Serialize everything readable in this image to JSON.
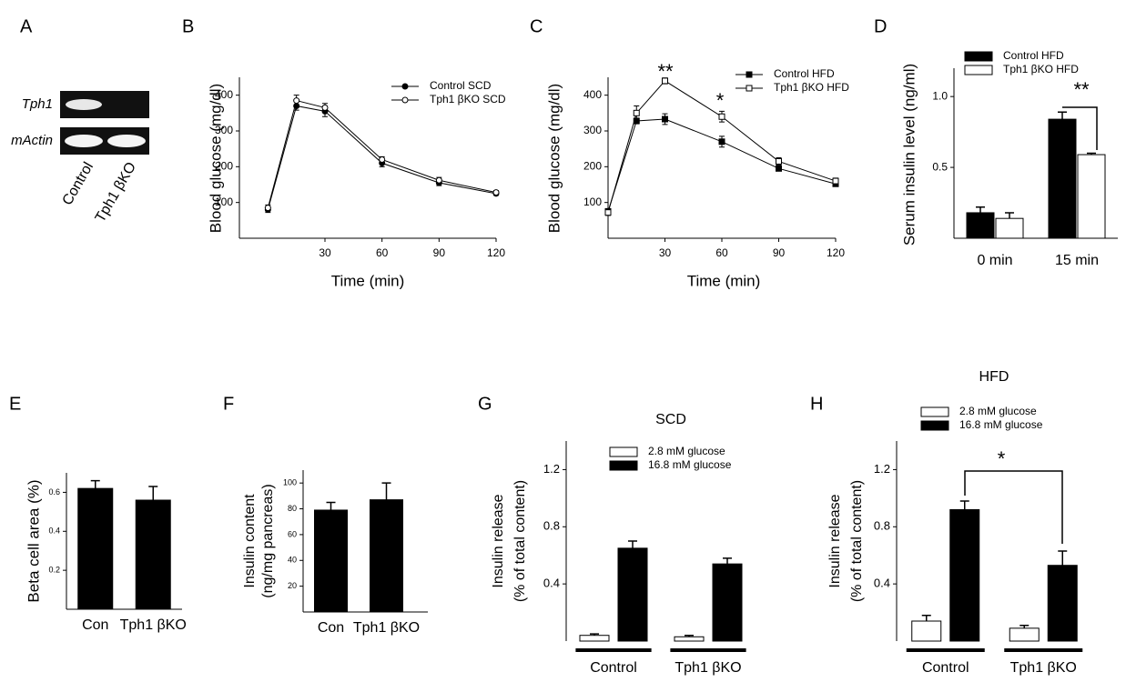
{
  "chart_data": [
    {
      "panel": "A",
      "type": "gel",
      "rows": [
        "Tph1",
        "mActin"
      ],
      "lanes": [
        "Control",
        "Tph1 βKO"
      ]
    },
    {
      "panel": "B",
      "type": "line",
      "xlabel": "Time (min)",
      "ylabel": "Blood glucose (mg/dl)",
      "x": [
        0,
        15,
        30,
        60,
        90,
        120
      ],
      "xlim": [
        -15,
        120
      ],
      "xticks": [
        30,
        60,
        90,
        120
      ],
      "ylim": [
        0,
        450
      ],
      "yticks": [
        100,
        200,
        300,
        400
      ],
      "series": [
        {
          "name": "Control SCD",
          "color": "#000000",
          "fill": "#000000",
          "marker": "circle",
          "values": [
            80,
            370,
            355,
            210,
            155,
            125
          ],
          "errors": [
            8,
            12,
            15,
            10,
            8,
            5
          ]
        },
        {
          "name": "Tph1 βKO SCD",
          "color": "#000000",
          "fill": "#ffffff",
          "marker": "circle",
          "values": [
            85,
            385,
            365,
            220,
            162,
            128
          ],
          "errors": [
            8,
            15,
            12,
            8,
            8,
            5
          ]
        }
      ]
    },
    {
      "panel": "C",
      "type": "line",
      "xlabel": "Time (min)",
      "ylabel": "Blood glucose (mg/dl)",
      "x": [
        0,
        15,
        30,
        60,
        90,
        120
      ],
      "xlim": [
        0,
        120
      ],
      "xticks": [
        30,
        60,
        90,
        120
      ],
      "ylim": [
        0,
        450
      ],
      "yticks": [
        100,
        200,
        300,
        400
      ],
      "annotations": [
        "**",
        "*"
      ],
      "series": [
        {
          "name": "Control HFD",
          "color": "#000000",
          "fill": "#000000",
          "marker": "square",
          "values": [
            75,
            328,
            333,
            270,
            195,
            152
          ],
          "errors": [
            8,
            8,
            15,
            15,
            6,
            6
          ]
        },
        {
          "name": "Tph1 βKO HFD",
          "color": "#000000",
          "fill": "#ffffff",
          "marker": "square",
          "values": [
            72,
            350,
            440,
            340,
            215,
            160
          ],
          "errors": [
            8,
            20,
            8,
            15,
            10,
            8
          ]
        }
      ]
    },
    {
      "panel": "D",
      "type": "bar",
      "ylabel": "Serum insulin level (ng/ml)",
      "categories": [
        "0 min",
        "15 min"
      ],
      "ylim": [
        0,
        1.2
      ],
      "yticks": [
        0.5,
        {
          "value": 1,
          "label": "1.0"
        }
      ],
      "annotations": [
        "**"
      ],
      "series": [
        {
          "name": "Control HFD",
          "color": "#000000",
          "values": [
            0.18,
            0.84
          ],
          "errors": [
            0.04,
            0.05
          ]
        },
        {
          "name": "Tph1 βKO HFD",
          "color": "#ffffff",
          "values": [
            0.14,
            0.59
          ],
          "errors": [
            0.04,
            0.01
          ]
        }
      ]
    },
    {
      "panel": "E",
      "type": "bar",
      "ylabel": "Beta cell area (%)",
      "categories": [
        "Con",
        "Tph1 βKO"
      ],
      "ylim": [
        0,
        0.7
      ],
      "yticks": [
        0.2,
        0.4,
        0.6
      ],
      "series": [
        {
          "color": "#000000",
          "values": [
            0.62,
            0.56
          ],
          "errors": [
            0.04,
            0.07
          ]
        }
      ]
    },
    {
      "panel": "F",
      "type": "bar",
      "ylabel": [
        "Insulin content",
        "(ng/mg pancreas)"
      ],
      "categories": [
        "Con",
        "Tph1 βKO"
      ],
      "ylim": [
        0,
        110
      ],
      "yticks": [
        20,
        40,
        60,
        80,
        100
      ],
      "series": [
        {
          "color": "#000000",
          "values": [
            79,
            87
          ],
          "errors": [
            6,
            13
          ]
        }
      ]
    },
    {
      "panel": "G",
      "type": "bar",
      "title": "SCD",
      "ylabel": [
        "Insulin release",
        "(% of total content)"
      ],
      "categories": [
        "Control",
        "Tph1 βKO"
      ],
      "ylim": [
        0,
        1.4
      ],
      "yticks": [
        0.4,
        0.8,
        1.2
      ],
      "series": [
        {
          "name": "2.8 mM glucose",
          "color": "#ffffff",
          "values": [
            0.04,
            0.03
          ],
          "errors": [
            0.01,
            0.01
          ]
        },
        {
          "name": "16.8 mM glucose",
          "color": "#000000",
          "values": [
            0.65,
            0.54
          ],
          "errors": [
            0.05,
            0.04
          ]
        }
      ]
    },
    {
      "panel": "H",
      "type": "bar",
      "title": "HFD",
      "ylabel": [
        "Insulin release",
        "(% of total content)"
      ],
      "categories": [
        "Control",
        "Tph1 βKO"
      ],
      "ylim": [
        0,
        1.4
      ],
      "yticks": [
        0.4,
        0.8,
        1.2
      ],
      "annotations": [
        "*"
      ],
      "series": [
        {
          "name": "2.8 mM glucose",
          "color": "#ffffff",
          "values": [
            0.14,
            0.09
          ],
          "errors": [
            0.04,
            0.02
          ]
        },
        {
          "name": "16.8 mM glucose",
          "color": "#000000",
          "values": [
            0.92,
            0.53
          ],
          "errors": [
            0.06,
            0.1
          ]
        }
      ]
    }
  ]
}
